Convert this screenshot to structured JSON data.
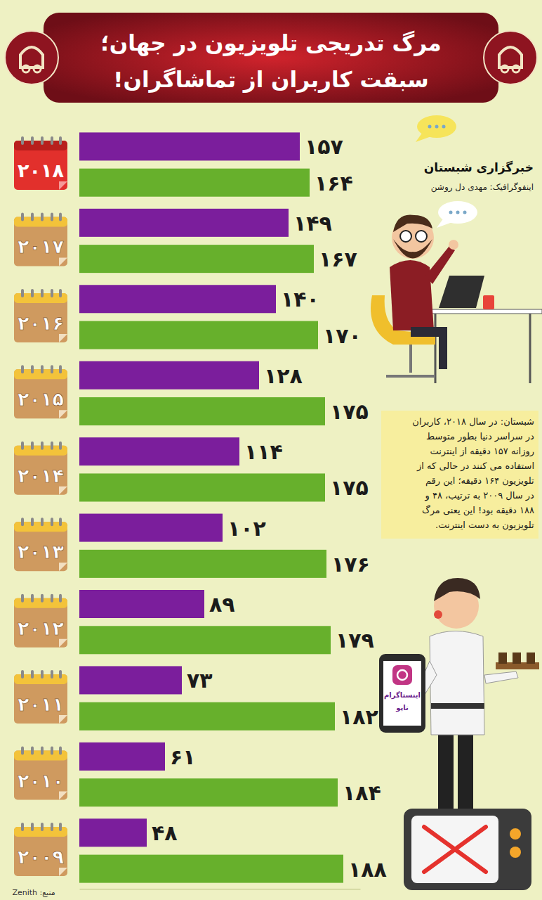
{
  "chart_data": {
    "type": "bar",
    "orientation": "horizontal",
    "title": [
      "مرگ تدریجی تلویزیون در جهان؛",
      "سبقت کاربران از تماشاگران!"
    ],
    "categories": [
      "۲۰۱۸",
      "۲۰۱۷",
      "۲۰۱۶",
      "۲۰۱۵",
      "۲۰۱۴",
      "۲۰۱۳",
      "۲۰۱۲",
      "۲۰۱۱",
      "۲۰۱۰",
      "۲۰۰۹"
    ],
    "series": [
      {
        "color": "#7b1e9c",
        "values": [
          157,
          149,
          140,
          128,
          114,
          102,
          89,
          73,
          61,
          48
        ],
        "value_labels": [
          "۱۵۷",
          "۱۴۹",
          "۱۴۰",
          "۱۲۸",
          "۱۱۴",
          "۱۰۲",
          "۸۹",
          "۷۳",
          "۶۱",
          "۴۸"
        ]
      },
      {
        "color": "#67b02c",
        "values": [
          164,
          167,
          170,
          175,
          175,
          176,
          179,
          182,
          184,
          188
        ],
        "value_labels": [
          "۱۶۴",
          "۱۶۷",
          "۱۷۰",
          "۱۷۵",
          "۱۷۵",
          "۱۷۶",
          "۱۷۹",
          "۱۸۲",
          "۱۸۴",
          "۱۸۸"
        ]
      }
    ],
    "xlim": [
      0,
      200
    ],
    "xticks": [],
    "grid": false,
    "data_labels": true,
    "tick_labels": "y",
    "annotations": {
      "credit": "خبرگزاری شبستان",
      "author": "اینفوگرافیک: مهدی دل روشن",
      "note": [
        "شبستان: در سال ۲۰۱۸، کاربران",
        "در سراسر دنیا بطور متوسط",
        "روزانه ۱۵۷ دقیقه از اینترنت",
        "استفاده می کنند در حالی که از",
        "تلویزیون ۱۶۴ دقیقه؛ این رقم",
        "در سال ۲۰۰۹ به ترتیب، ۴۸ و",
        "۱۸۸ دقیقه بود! این یعنی مرگ",
        "تلویزیون به دست اینترنت."
      ],
      "phone": [
        "اینستاگرام",
        "تاپو"
      ],
      "source": "منبع: Zenith"
    }
  }
}
